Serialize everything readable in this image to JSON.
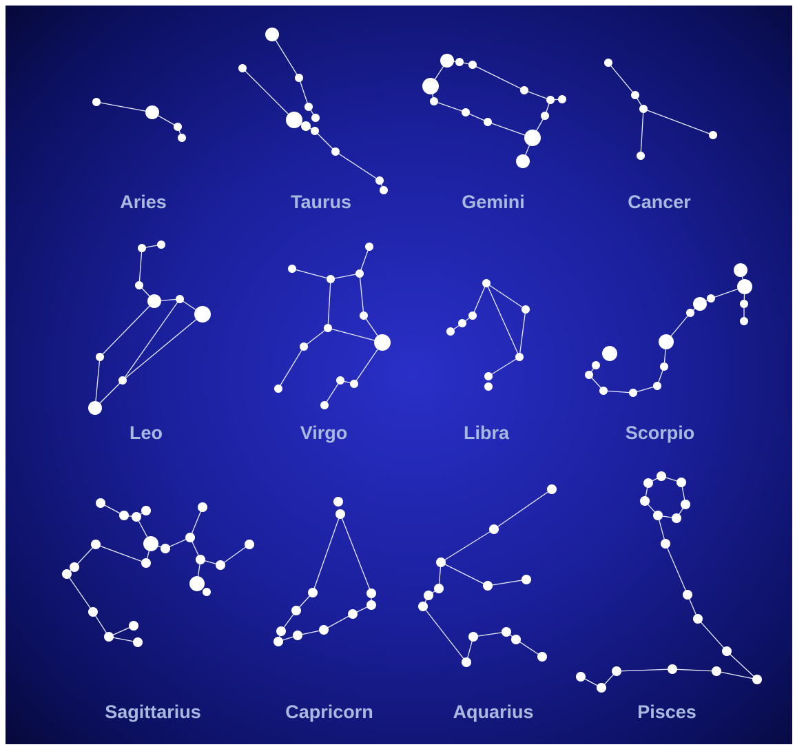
{
  "constellations": [
    {
      "label": "Aries"
    },
    {
      "label": "Taurus"
    },
    {
      "label": "Gemini"
    },
    {
      "label": "Cancer"
    },
    {
      "label": "Leo"
    },
    {
      "label": "Virgo"
    },
    {
      "label": "Libra"
    },
    {
      "label": "Scorpio"
    },
    {
      "label": "Sagittarius"
    },
    {
      "label": "Capricorn"
    },
    {
      "label": "Aquarius"
    },
    {
      "label": "Pisces"
    }
  ]
}
